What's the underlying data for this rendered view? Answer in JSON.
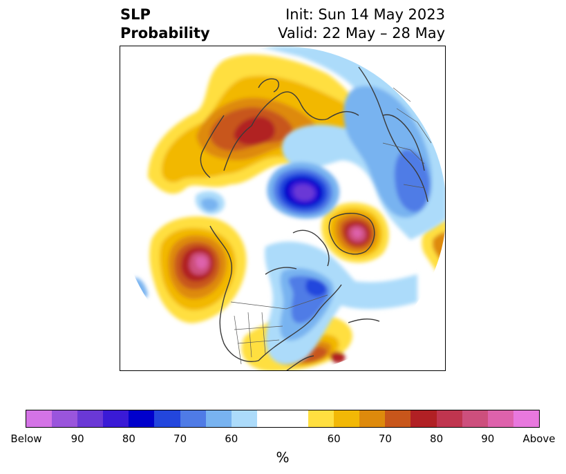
{
  "title": {
    "left_line1": "SLP",
    "left_line2": "Probability",
    "right_line1": "Init: Sun 14 May 2023",
    "right_line2": "Valid: 22 May – 28 May"
  },
  "map": {
    "projection": "north-polar stereographic",
    "variable": "sea level pressure tercile probability"
  },
  "colorbar": {
    "unit_label": "%",
    "below_colors": [
      "#d473e6",
      "#9a55dc",
      "#6a38d6",
      "#3a1ad6",
      "#0000cc",
      "#2346dd",
      "#4f7be6",
      "#78b3f0",
      "#acdbfa"
    ],
    "neutral_color": "#ffffff",
    "above_colors": [
      "#ffdf40",
      "#f2b806",
      "#de8a0c",
      "#c8561b",
      "#b12024",
      "#c0354f",
      "#cd4f7d",
      "#de62ac",
      "#e878de"
    ],
    "tick_labels": [
      "Below",
      "90",
      "80",
      "70",
      "60",
      "60",
      "70",
      "80",
      "90",
      "Above"
    ]
  }
}
